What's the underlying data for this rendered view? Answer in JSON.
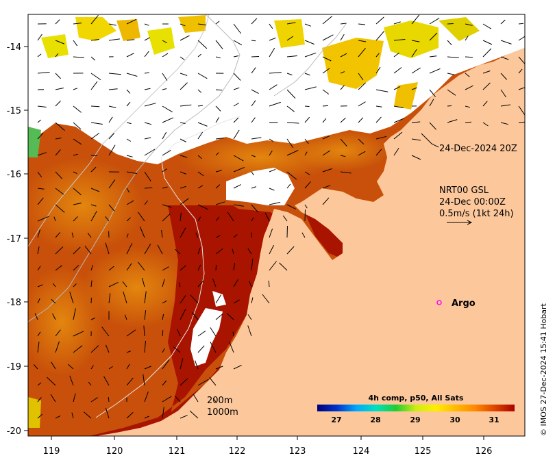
{
  "map": {
    "x_ticks": [
      "119",
      "120",
      "121",
      "122",
      "123",
      "124",
      "125",
      "126"
    ],
    "y_ticks": [
      "-14",
      "-15",
      "-16",
      "-17",
      "-18",
      "-19",
      "-20"
    ]
  },
  "annotations": {
    "track_time": "24-Dec-2024 20Z",
    "current_product": "NRT00 GSL",
    "current_time": "24-Dec 00:00Z",
    "current_scale": "0.5m/s (1kt 24h)",
    "argo_label": "Argo",
    "contour_200": "200m",
    "contour_1000": "1000m",
    "credit": "© IMOS 27-Dec-2024 15:41 Hobart"
  },
  "colorbar": {
    "title": "4h comp, p50, All Sats",
    "ticks": [
      "27",
      "28",
      "29",
      "30",
      "31"
    ],
    "colors": [
      "#00007a",
      "#0033cc",
      "#00aaff",
      "#00e0c0",
      "#22cc33",
      "#ccee11",
      "#ffee00",
      "#ffbb00",
      "#ff8800",
      "#dd4400",
      "#aa0000"
    ]
  },
  "colors": {
    "land": "#fcc89b",
    "no_data": "#ffffff",
    "sst_dark": "#a81400",
    "sst_mid": "#cc4b00",
    "sst_warm": "#e3860d",
    "sst_cool": "#f2d600",
    "argo_marker": "#ff00ff"
  }
}
